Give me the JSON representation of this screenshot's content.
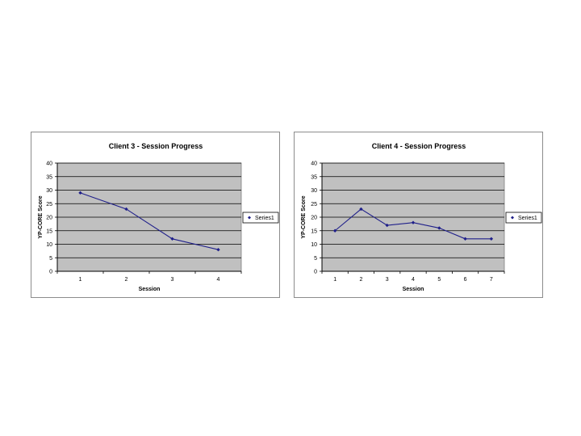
{
  "colors": {
    "plot_background": "#c0c0c0",
    "gridline": "#000000",
    "series": "#1f1f8a",
    "frame_border": "#8c8c8c"
  },
  "chart_data": [
    {
      "type": "line",
      "title": "Client 3 - Session Progress",
      "xlabel": "Session",
      "ylabel": "YP-CORE Score",
      "x": [
        1,
        2,
        3,
        4
      ],
      "series": [
        {
          "name": "Series1",
          "values": [
            29,
            23,
            12,
            8
          ]
        }
      ],
      "ylim": [
        0,
        40
      ],
      "yticks": [
        0,
        5,
        10,
        15,
        20,
        25,
        30,
        35,
        40
      ],
      "grid": true,
      "legend": "right"
    },
    {
      "type": "line",
      "title": "Client 4 - Session Progress",
      "xlabel": "Session",
      "ylabel": "YP-CORE Score",
      "x": [
        1,
        2,
        3,
        4,
        5,
        6,
        7
      ],
      "series": [
        {
          "name": "Series1",
          "values": [
            15,
            23,
            17,
            18,
            16,
            12,
            12
          ]
        }
      ],
      "ylim": [
        0,
        40
      ],
      "yticks": [
        0,
        5,
        10,
        15,
        20,
        25,
        30,
        35,
        40
      ],
      "grid": true,
      "legend": "right"
    }
  ]
}
